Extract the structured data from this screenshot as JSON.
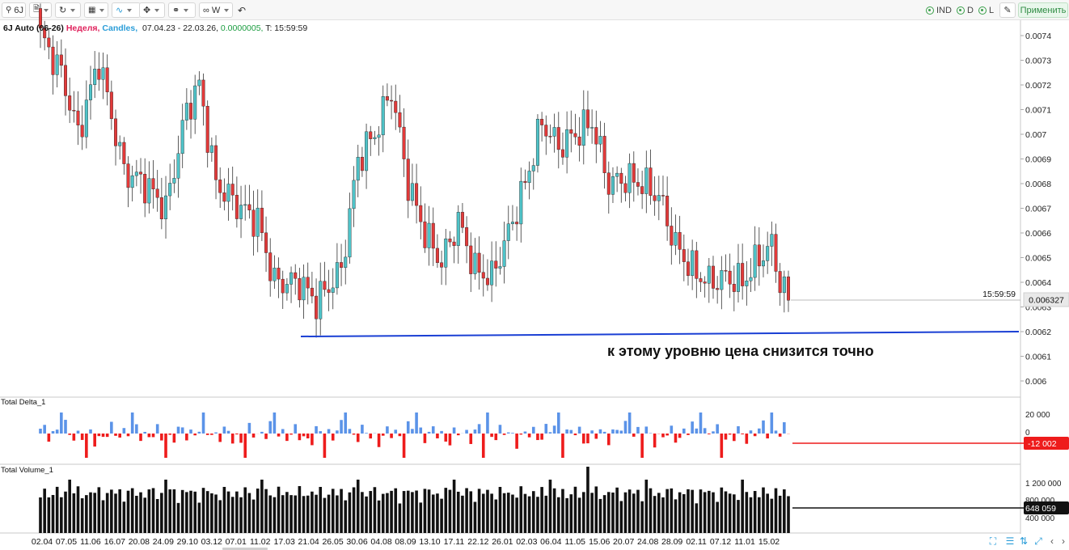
{
  "toolbar": {
    "symbol": "6J",
    "timeframe": "W",
    "indicators": [
      {
        "label": "IND"
      },
      {
        "label": "D"
      },
      {
        "label": "L"
      }
    ],
    "apply_label": "Применить"
  },
  "header": {
    "symbol": "6J Auto (06-26)",
    "timeframe": "Неделя,",
    "chart_type": "Candles,",
    "date_range": "07.04.23 - 22.03.26,",
    "tick_size": "0.0000005,",
    "time": "T: 15:59:59"
  },
  "price_axis": {
    "labels": [
      "0.0074",
      "0.0073",
      "0.0072",
      "0.0071",
      "0.007",
      "0.0069",
      "0.0068",
      "0.0067",
      "0.0066",
      "0.0065",
      "0.0064",
      "0.0063",
      "0.0062",
      "0.0061",
      "0.006"
    ],
    "current_price": "0.006327",
    "current_time": "15:59:59"
  },
  "delta_panel": {
    "title": "Total Delta_1",
    "labels": [
      "20 000",
      "0"
    ],
    "current_value": "-12 002"
  },
  "volume_panel": {
    "title": "Total Volume_1",
    "labels": [
      "1 200 000",
      "800 000",
      "400 000"
    ],
    "current_value": "648 059"
  },
  "annotation": "к этому уровню цена снизится точно",
  "x_axis": {
    "labels": [
      "02.04",
      "07.05",
      "11.06",
      "16.07",
      "20.08",
      "24.09",
      "29.10",
      "03.12",
      "07.01",
      "11.02",
      "17.03",
      "21.04",
      "26.05",
      "30.06",
      "04.08",
      "08.09",
      "13.10",
      "17.11",
      "22.12",
      "26.01",
      "02.03",
      "06.04",
      "11.05",
      "15.06",
      "20.07",
      "24.08",
      "28.09",
      "02.11",
      "07.12",
      "11.01",
      "15.02"
    ]
  },
  "colors": {
    "bull": "#4fc3c8",
    "bear": "#e23a3a",
    "delta_pos": "#5b93e8",
    "delta_neg": "#ee1c1c",
    "volume": "#111111",
    "support_line": "#1a3fd4"
  },
  "chart_data": {
    "type": "candlestick",
    "title": "",
    "price_range": [
      0.0059,
      0.0075
    ],
    "support_level": [
      0.00618,
      0.0062
    ],
    "current_price": 0.006327,
    "delta_current": -12002,
    "volume_current": 648059,
    "close_anchors": [
      [
        0,
        0.0074
      ],
      [
        5,
        0.00725
      ],
      [
        9,
        0.007
      ],
      [
        14,
        0.0073
      ],
      [
        20,
        0.00685
      ],
      [
        25,
        0.0068
      ],
      [
        30,
        0.0067
      ],
      [
        35,
        0.0071
      ],
      [
        38,
        0.0072
      ],
      [
        42,
        0.0068
      ],
      [
        48,
        0.0067
      ],
      [
        52,
        0.00665
      ],
      [
        56,
        0.0064
      ],
      [
        62,
        0.0064
      ],
      [
        66,
        0.00632
      ],
      [
        72,
        0.00645
      ],
      [
        76,
        0.0069
      ],
      [
        80,
        0.007
      ],
      [
        84,
        0.00718
      ],
      [
        88,
        0.0068
      ],
      [
        92,
        0.0066
      ],
      [
        96,
        0.00648
      ],
      [
        100,
        0.00665
      ],
      [
        104,
        0.00645
      ],
      [
        108,
        0.00642
      ],
      [
        112,
        0.0066
      ],
      [
        116,
        0.0068
      ],
      [
        120,
        0.00705
      ],
      [
        124,
        0.00695
      ],
      [
        128,
        0.007
      ],
      [
        132,
        0.00705
      ],
      [
        136,
        0.0068
      ],
      [
        140,
        0.00682
      ],
      [
        144,
        0.0068
      ],
      [
        148,
        0.00675
      ],
      [
        152,
        0.00655
      ],
      [
        156,
        0.00645
      ],
      [
        160,
        0.0064
      ],
      [
        164,
        0.00642
      ],
      [
        168,
        0.0064
      ],
      [
        172,
        0.0065
      ],
      [
        175,
        0.00655
      ],
      [
        177,
        0.0064
      ],
      [
        179,
        0.006327
      ]
    ]
  }
}
